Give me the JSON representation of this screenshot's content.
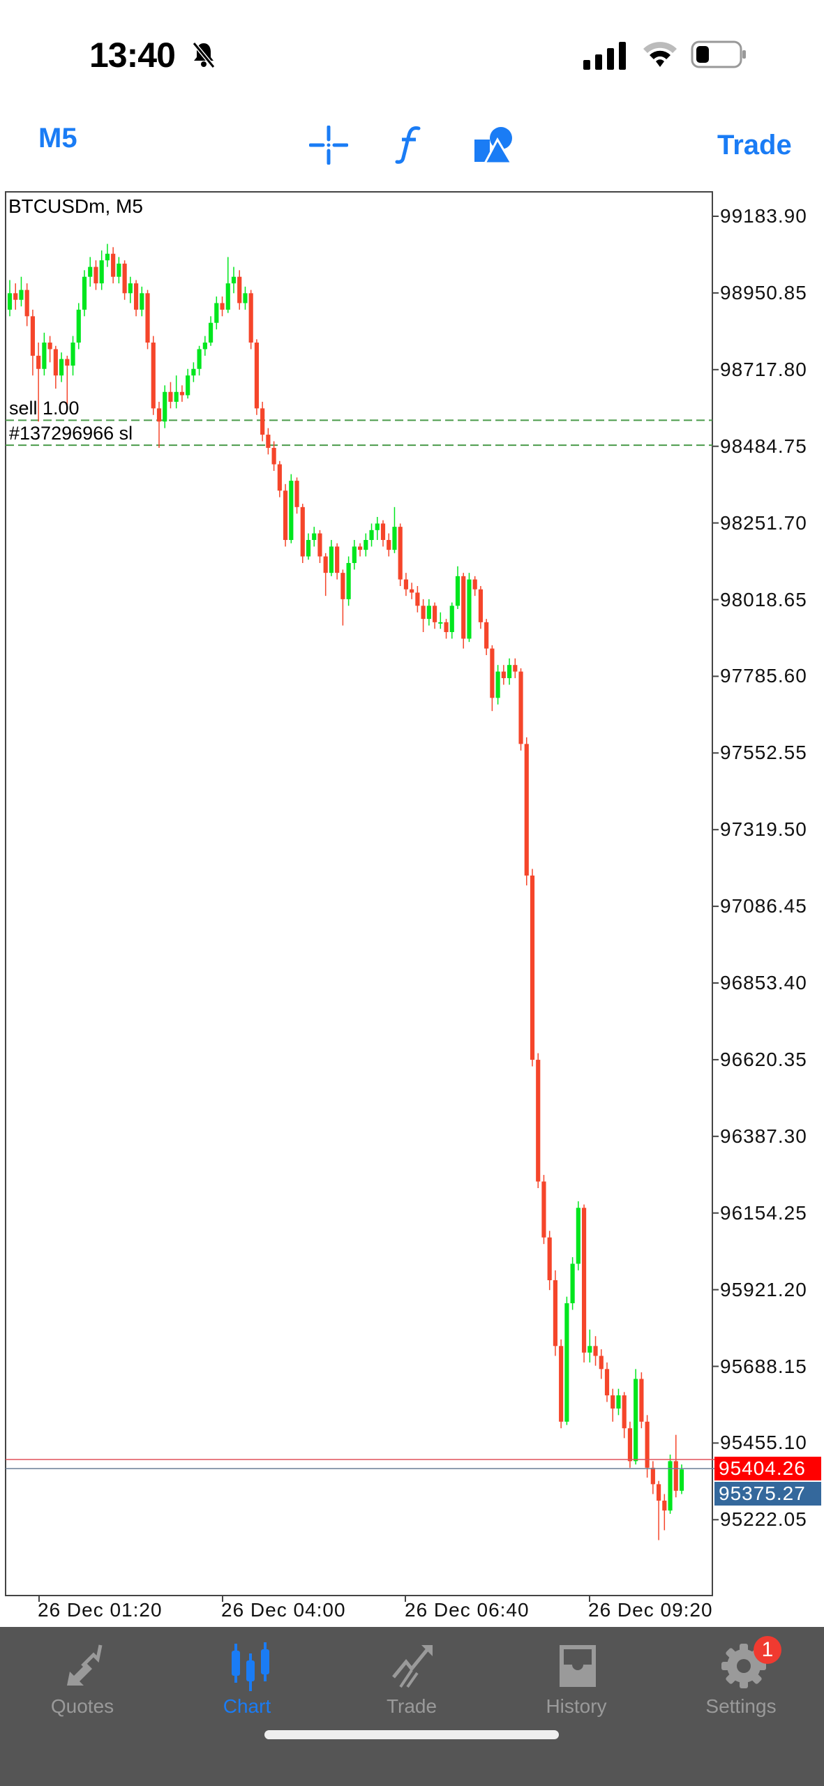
{
  "status_bar": {
    "time": "13:40",
    "icons": [
      "bell-slash-icon",
      "cellular-signal-icon",
      "wifi-icon",
      "battery-icon"
    ]
  },
  "toolbar": {
    "timeframe": "M5",
    "icons": [
      "crosshair-icon",
      "indicators-f-icon",
      "objects-shapes-icon"
    ],
    "trade_label": "Trade",
    "accent": "#1a7cf5"
  },
  "chart": {
    "symbol_label": "BTCUSDm, M5",
    "order_lines": [
      {
        "label": "sell 1.00",
        "price": 98564,
        "color": "#4a9a4a"
      },
      {
        "label": "#137296966 sl",
        "price": 98488,
        "color": "#4a9a4a"
      }
    ],
    "ask": {
      "label": "95404.26",
      "color": "#ff0000"
    },
    "bid": {
      "label": "95375.27",
      "color": "#34689c"
    },
    "price_axis": [
      "99183.90",
      "98950.85",
      "98717.80",
      "98484.75",
      "98251.70",
      "98018.65",
      "97785.60",
      "97552.55",
      "97319.50",
      "97086.45",
      "96853.40",
      "96620.35",
      "96387.30",
      "96154.25",
      "95921.20",
      "95688.15",
      "95455.10",
      "95222.05"
    ],
    "time_axis": [
      "26 Dec 01:20",
      "26 Dec 04:00",
      "26 Dec 06:40",
      "26 Dec 09:20"
    ],
    "bull_color": "#00e61e",
    "bear_color": "#f5452a"
  },
  "chart_data": {
    "type": "candlestick",
    "title": "BTCUSDm, M5",
    "ylim": [
      95000,
      99300
    ],
    "ohlc": [
      [
        98900,
        98990,
        98880,
        98950
      ],
      [
        98950,
        98980,
        98900,
        98930
      ],
      [
        98930,
        99000,
        98910,
        98960
      ],
      [
        98960,
        98980,
        98850,
        98880
      ],
      [
        98880,
        98900,
        98700,
        98760
      ],
      [
        98760,
        98800,
        98560,
        98720
      ],
      [
        98720,
        98830,
        98700,
        98800
      ],
      [
        98800,
        98820,
        98740,
        98780
      ],
      [
        98780,
        98790,
        98660,
        98700
      ],
      [
        98700,
        98770,
        98680,
        98750
      ],
      [
        98750,
        98760,
        98600,
        98730
      ],
      [
        98730,
        98820,
        98700,
        98800
      ],
      [
        98800,
        98920,
        98780,
        98900
      ],
      [
        98900,
        99020,
        98880,
        99000
      ],
      [
        99000,
        99060,
        98970,
        99030
      ],
      [
        99030,
        99050,
        98960,
        98980
      ],
      [
        98980,
        99080,
        98960,
        99050
      ],
      [
        99050,
        99100,
        99030,
        99070
      ],
      [
        99070,
        99090,
        98980,
        99000
      ],
      [
        99000,
        99060,
        98980,
        99040
      ],
      [
        99040,
        99050,
        98930,
        98950
      ],
      [
        98950,
        99000,
        98920,
        98980
      ],
      [
        98980,
        98990,
        98880,
        98900
      ],
      [
        98900,
        98970,
        98880,
        98950
      ],
      [
        98950,
        98960,
        98780,
        98800
      ],
      [
        98800,
        98820,
        98580,
        98600
      ],
      [
        98600,
        98620,
        98480,
        98560
      ],
      [
        98560,
        98670,
        98540,
        98650
      ],
      [
        98650,
        98680,
        98600,
        98620
      ],
      [
        98620,
        98700,
        98600,
        98650
      ],
      [
        98650,
        98670,
        98620,
        98640
      ],
      [
        98640,
        98720,
        98630,
        98700
      ],
      [
        98700,
        98740,
        98680,
        98720
      ],
      [
        98720,
        98790,
        98700,
        98780
      ],
      [
        98780,
        98820,
        98760,
        98800
      ],
      [
        98800,
        98880,
        98790,
        98860
      ],
      [
        98860,
        98940,
        98840,
        98920
      ],
      [
        98920,
        98940,
        98880,
        98900
      ],
      [
        98900,
        99060,
        98890,
        98980
      ],
      [
        98980,
        99030,
        98950,
        99000
      ],
      [
        99000,
        99020,
        98900,
        98920
      ],
      [
        98920,
        98970,
        98900,
        98950
      ],
      [
        98950,
        98960,
        98780,
        98800
      ],
      [
        98800,
        98810,
        98580,
        98600
      ],
      [
        98600,
        98620,
        98500,
        98520
      ],
      [
        98520,
        98540,
        98460,
        98480
      ],
      [
        98480,
        98500,
        98410,
        98430
      ],
      [
        98430,
        98440,
        98330,
        98350
      ],
      [
        98350,
        98370,
        98180,
        98200
      ],
      [
        98200,
        98400,
        98190,
        98380
      ],
      [
        98380,
        98390,
        98280,
        98300
      ],
      [
        98300,
        98310,
        98130,
        98150
      ],
      [
        98150,
        98220,
        98140,
        98200
      ],
      [
        98200,
        98240,
        98180,
        98220
      ],
      [
        98220,
        98230,
        98130,
        98150
      ],
      [
        98150,
        98160,
        98030,
        98100
      ],
      [
        98100,
        98200,
        98090,
        98180
      ],
      [
        98180,
        98190,
        98080,
        98100
      ],
      [
        98100,
        98110,
        97940,
        98020
      ],
      [
        98020,
        98150,
        98000,
        98130
      ],
      [
        98130,
        98200,
        98110,
        98180
      ],
      [
        98180,
        98190,
        98150,
        98170
      ],
      [
        98170,
        98220,
        98150,
        98200
      ],
      [
        98200,
        98250,
        98180,
        98230
      ],
      [
        98230,
        98270,
        98200,
        98250
      ],
      [
        98250,
        98260,
        98180,
        98200
      ],
      [
        98200,
        98220,
        98150,
        98170
      ],
      [
        98170,
        98300,
        98160,
        98240
      ],
      [
        98240,
        98250,
        98060,
        98080
      ],
      [
        98080,
        98100,
        98030,
        98050
      ],
      [
        98050,
        98070,
        98020,
        98040
      ],
      [
        98040,
        98060,
        97980,
        98000
      ],
      [
        98000,
        98020,
        97920,
        97960
      ],
      [
        97960,
        98020,
        97940,
        98000
      ],
      [
        98000,
        98010,
        97930,
        97950
      ],
      [
        97950,
        97980,
        97930,
        97950
      ],
      [
        97950,
        97960,
        97900,
        97920
      ],
      [
        97920,
        98010,
        97900,
        98000
      ],
      [
        98000,
        98120,
        97990,
        98090
      ],
      [
        98090,
        98100,
        97870,
        97900
      ],
      [
        97900,
        98100,
        97890,
        98080
      ],
      [
        98080,
        98090,
        98030,
        98050
      ],
      [
        98050,
        98060,
        97930,
        97950
      ],
      [
        97950,
        97960,
        97850,
        97870
      ],
      [
        97870,
        97880,
        97680,
        97720
      ],
      [
        97720,
        97820,
        97700,
        97800
      ],
      [
        97800,
        97820,
        97760,
        97780
      ],
      [
        97780,
        97840,
        97760,
        97820
      ],
      [
        97820,
        97840,
        97780,
        97800
      ],
      [
        97800,
        97810,
        97560,
        97580
      ],
      [
        97580,
        97600,
        97150,
        97180
      ],
      [
        97180,
        97200,
        96600,
        96620
      ],
      [
        96620,
        96640,
        96230,
        96250
      ],
      [
        96250,
        96270,
        96060,
        96080
      ],
      [
        96080,
        96100,
        95920,
        95950
      ],
      [
        95950,
        95980,
        95720,
        95750
      ],
      [
        95750,
        95770,
        95500,
        95520
      ],
      [
        95520,
        95900,
        95510,
        95880
      ],
      [
        95880,
        96020,
        95860,
        96000
      ],
      [
        96000,
        96190,
        95980,
        96170
      ],
      [
        96170,
        96180,
        95700,
        95730
      ],
      [
        95730,
        95800,
        95700,
        95750
      ],
      [
        95750,
        95780,
        95690,
        95720
      ],
      [
        95720,
        95740,
        95650,
        95680
      ],
      [
        95680,
        95700,
        95580,
        95600
      ],
      [
        95600,
        95620,
        95520,
        95560
      ],
      [
        95560,
        95620,
        95540,
        95600
      ],
      [
        95600,
        95610,
        95470,
        95500
      ],
      [
        95500,
        95520,
        95380,
        95400
      ],
      [
        95400,
        95680,
        95390,
        95650
      ],
      [
        95650,
        95670,
        95500,
        95520
      ],
      [
        95520,
        95540,
        95350,
        95380
      ],
      [
        95380,
        95400,
        95300,
        95330
      ],
      [
        95330,
        95340,
        95160,
        95280
      ],
      [
        95280,
        95300,
        95190,
        95250
      ],
      [
        95250,
        95420,
        95240,
        95400
      ],
      [
        95400,
        95480,
        95290,
        95310
      ],
      [
        95310,
        95390,
        95300,
        95375
      ]
    ]
  },
  "tabbar": {
    "tabs": [
      {
        "label": "Quotes",
        "icon": "quotes-arrows-icon"
      },
      {
        "label": "Chart",
        "icon": "candlestick-icon",
        "active": true
      },
      {
        "label": "Trade",
        "icon": "trade-trend-icon"
      },
      {
        "label": "History",
        "icon": "inbox-tray-icon"
      },
      {
        "label": "Settings",
        "icon": "gear-icon",
        "badge": "1"
      }
    ]
  }
}
